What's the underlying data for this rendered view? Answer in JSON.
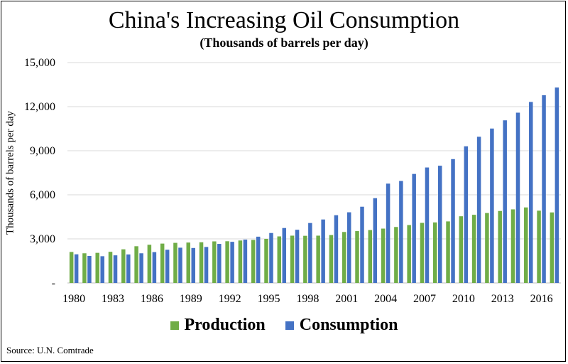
{
  "chart_data": {
    "type": "bar",
    "title": "China's Increasing Oil Consumption",
    "subtitle": "(Thousands of barrels per day)",
    "ylabel": "Thousands of barrels per day",
    "xlabel": "",
    "ylim": [
      0,
      15000
    ],
    "yticks": [
      "-",
      "3,000",
      "6,000",
      "9,000",
      "12,000",
      "15,000"
    ],
    "xtick_labels": [
      "1980",
      "1983",
      "1986",
      "1989",
      "1992",
      "1995",
      "1998",
      "2001",
      "2004",
      "2007",
      "2010",
      "2013",
      "2016"
    ],
    "grid": true,
    "legend_position": "bottom",
    "categories": [
      "1980",
      "1981",
      "1982",
      "1983",
      "1984",
      "1985",
      "1986",
      "1987",
      "1988",
      "1989",
      "1990",
      "1991",
      "1992",
      "1993",
      "1994",
      "1995",
      "1996",
      "1997",
      "1998",
      "1999",
      "2000",
      "2001",
      "2002",
      "2003",
      "2004",
      "2005",
      "2006",
      "2007",
      "2008",
      "2009",
      "2010",
      "2011",
      "2012",
      "2013",
      "2014",
      "2015",
      "2016",
      "2017"
    ],
    "series": [
      {
        "name": "Production",
        "color": "#70ad47",
        "values": [
          2110,
          2020,
          2050,
          2120,
          2290,
          2500,
          2600,
          2680,
          2730,
          2750,
          2770,
          2830,
          2840,
          2890,
          2930,
          3000,
          3170,
          3220,
          3210,
          3220,
          3260,
          3470,
          3530,
          3600,
          3700,
          3810,
          3940,
          4090,
          4120,
          4190,
          4540,
          4640,
          4760,
          4900,
          5010,
          5140,
          4920,
          4800
        ]
      },
      {
        "name": "Consumption",
        "color": "#4472c4",
        "values": [
          1950,
          1840,
          1820,
          1880,
          1940,
          2020,
          2100,
          2260,
          2400,
          2380,
          2450,
          2660,
          2800,
          2950,
          3150,
          3400,
          3740,
          3620,
          4080,
          4320,
          4610,
          4810,
          5190,
          5770,
          6760,
          6940,
          7420,
          7860,
          7980,
          8430,
          9300,
          9950,
          10510,
          11070,
          11590,
          12320,
          12780,
          13300
        ]
      }
    ]
  },
  "source": "Source: U.N. Comtrade"
}
